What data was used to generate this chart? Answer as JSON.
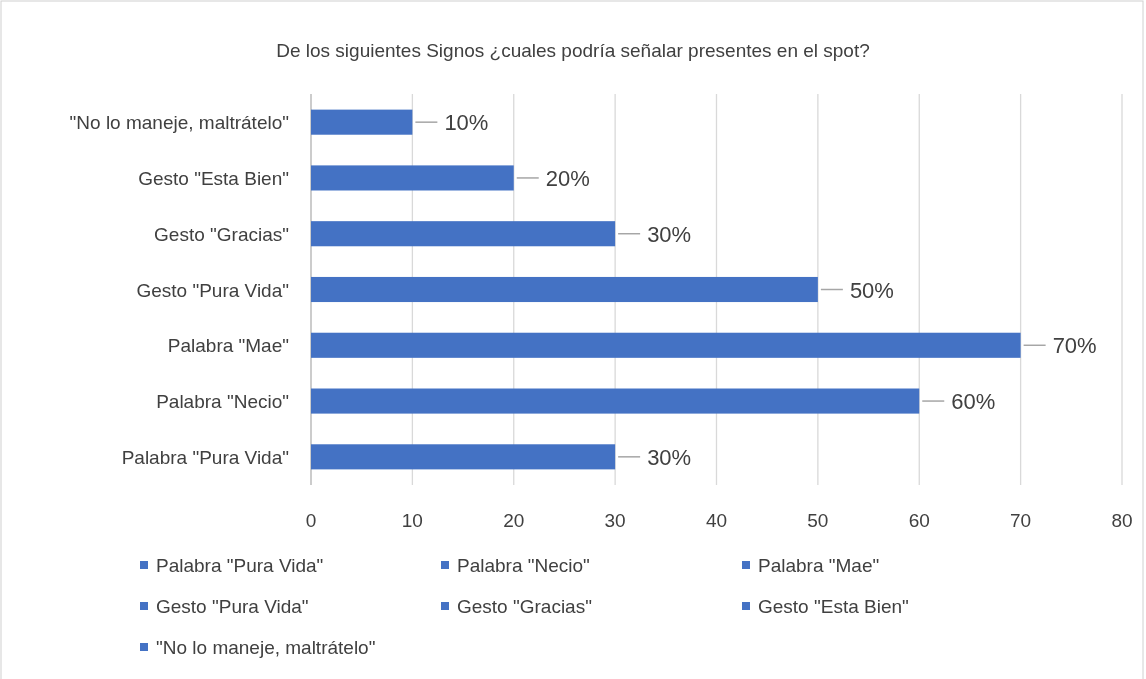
{
  "chart_data": {
    "type": "bar",
    "orientation": "horizontal",
    "title": "De los siguientes Signos ¿cuales podría señalar presentes en el spot?",
    "categories": [
      "\"No lo maneje, maltrátelo\"",
      "Gesto \"Esta Bien\"",
      "Gesto \"Gracias\"",
      "Gesto \"Pura Vida\"",
      "Palabra \"Mae\"",
      "Palabra \"Necio\"",
      "Palabra \"Pura Vida\""
    ],
    "series": [
      {
        "name": "Palabra \"Pura Vida\"",
        "color": "#4472c4",
        "values": [
          null,
          null,
          null,
          null,
          null,
          null,
          30
        ],
        "value_labels": [
          null,
          null,
          null,
          null,
          null,
          null,
          "30%"
        ]
      },
      {
        "name": "Palabra \"Necio\"",
        "color": "#4472c4",
        "values": [
          null,
          null,
          null,
          null,
          null,
          60,
          null
        ],
        "value_labels": [
          null,
          null,
          null,
          null,
          null,
          "60%",
          null
        ]
      },
      {
        "name": "Palabra \"Mae\"",
        "color": "#4472c4",
        "values": [
          null,
          null,
          null,
          null,
          70,
          null,
          null
        ],
        "value_labels": [
          null,
          null,
          null,
          null,
          "70%",
          null,
          null
        ]
      },
      {
        "name": "Gesto \"Pura Vida\"",
        "color": "#4472c4",
        "values": [
          null,
          null,
          null,
          50,
          null,
          null,
          null
        ],
        "value_labels": [
          null,
          null,
          null,
          "50%",
          null,
          null,
          null
        ]
      },
      {
        "name": "Gesto \"Gracias\"",
        "color": "#4472c4",
        "values": [
          null,
          null,
          30,
          null,
          null,
          null,
          null
        ],
        "value_labels": [
          null,
          null,
          "30%",
          null,
          null,
          null,
          null
        ]
      },
      {
        "name": "Gesto \"Esta Bien\"",
        "color": "#4472c4",
        "values": [
          null,
          20,
          null,
          null,
          null,
          null,
          null
        ],
        "value_labels": [
          null,
          "20%",
          null,
          null,
          null,
          null,
          null
        ]
      },
      {
        "name": "\"No lo maneje, maltrátelo\"",
        "color": "#4472c4",
        "values": [
          10,
          null,
          null,
          null,
          null,
          null,
          null
        ],
        "value_labels": [
          "10%",
          null,
          null,
          null,
          null,
          null,
          null
        ]
      }
    ],
    "xlim": [
      0,
      80
    ],
    "xticks": [
      0,
      10,
      20,
      30,
      40,
      50,
      60,
      70,
      80
    ],
    "grid": "x",
    "legend": "bottom"
  }
}
